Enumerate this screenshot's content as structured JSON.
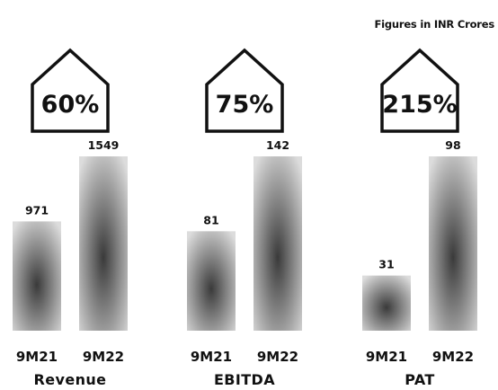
{
  "note": "Figures in INR Crores",
  "colors": {
    "bar_light": "#dcdcdc",
    "bar_dark": "#3a3a3a",
    "ink": "#111111"
  },
  "chart_data": {
    "type": "bar",
    "unit": "INR Crores",
    "groups": [
      {
        "name": "Revenue",
        "growth_label": "60%",
        "categories": [
          "9M21",
          "9M22"
        ],
        "values": [
          971,
          1549
        ]
      },
      {
        "name": "EBITDA",
        "growth_label": "75%",
        "categories": [
          "9M21",
          "9M22"
        ],
        "values": [
          81,
          142
        ]
      },
      {
        "name": "PAT",
        "growth_label": "215%",
        "categories": [
          "9M21",
          "9M22"
        ],
        "values": [
          31,
          98
        ]
      }
    ]
  }
}
